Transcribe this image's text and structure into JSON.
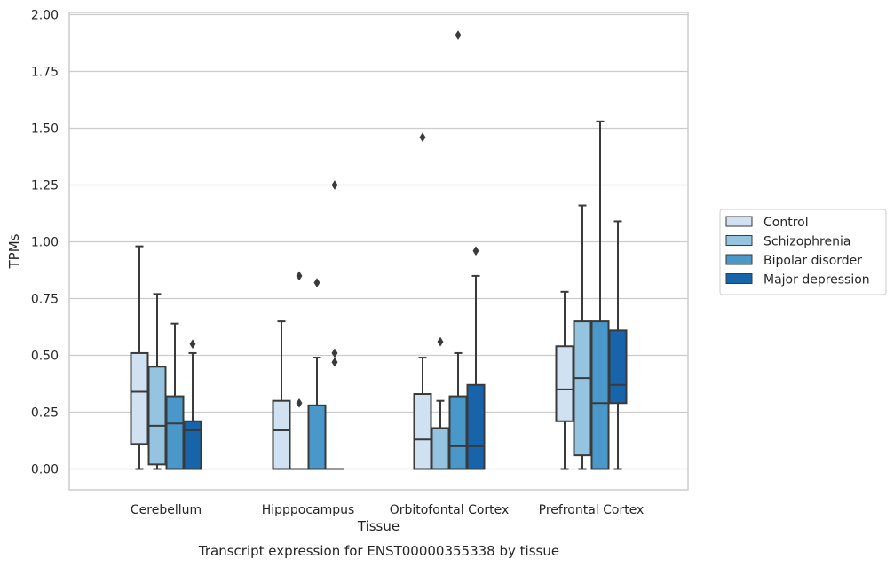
{
  "chart_data": {
    "type": "box",
    "title": "",
    "caption": "Transcript expression for ENST00000355338 by tissue",
    "xlabel": "Tissue",
    "ylabel": "TPMs",
    "ylim": [
      -0.09,
      2.0
    ],
    "yticks": [
      "0.00",
      "0.25",
      "0.50",
      "0.75",
      "1.00",
      "1.25",
      "1.50",
      "1.75",
      "2.00"
    ],
    "grid": "horizontal",
    "legend_position": "right",
    "categories": [
      "Cerebellum",
      "Hipppocampus",
      "Orbitofontal Cortex",
      "Prefrontal Cortex"
    ],
    "series": [
      {
        "name": "Control",
        "color": "#d0e1f2",
        "boxes": [
          {
            "min": 0.0,
            "q1": 0.11,
            "median": 0.34,
            "q3": 0.51,
            "max": 0.98,
            "outliers": []
          },
          {
            "min": 0.0,
            "q1": 0.0,
            "median": 0.17,
            "q3": 0.3,
            "max": 0.65,
            "outliers": []
          },
          {
            "min": 0.0,
            "q1": 0.0,
            "median": 0.13,
            "q3": 0.33,
            "max": 0.49,
            "outliers": [
              1.46
            ]
          },
          {
            "min": 0.0,
            "q1": 0.21,
            "median": 0.35,
            "q3": 0.54,
            "max": 0.78,
            "outliers": []
          }
        ]
      },
      {
        "name": "Schizophrenia",
        "color": "#94c4df",
        "boxes": [
          {
            "min": 0.0,
            "q1": 0.02,
            "median": 0.19,
            "q3": 0.45,
            "max": 0.77,
            "outliers": []
          },
          {
            "min": 0.0,
            "q1": 0.0,
            "median": 0.0,
            "q3": 0.0,
            "max": 0.0,
            "outliers": [
              0.29,
              0.85
            ]
          },
          {
            "min": 0.0,
            "q1": 0.0,
            "median": 0.0,
            "q3": 0.18,
            "max": 0.3,
            "outliers": [
              0.56
            ]
          },
          {
            "min": 0.0,
            "q1": 0.06,
            "median": 0.4,
            "q3": 0.65,
            "max": 1.16,
            "outliers": []
          }
        ]
      },
      {
        "name": "Bipolar disorder",
        "color": "#4a98c9",
        "boxes": [
          {
            "min": 0.0,
            "q1": 0.0,
            "median": 0.2,
            "q3": 0.32,
            "max": 0.64,
            "outliers": []
          },
          {
            "min": 0.0,
            "q1": 0.0,
            "median": 0.0,
            "q3": 0.28,
            "max": 0.49,
            "outliers": [
              0.82
            ]
          },
          {
            "min": 0.0,
            "q1": 0.0,
            "median": 0.1,
            "q3": 0.32,
            "max": 0.51,
            "outliers": [
              1.91
            ]
          },
          {
            "min": 0.0,
            "q1": 0.0,
            "median": 0.29,
            "q3": 0.65,
            "max": 1.53,
            "outliers": []
          }
        ]
      },
      {
        "name": "Major depression",
        "color": "#1764ab",
        "boxes": [
          {
            "min": 0.0,
            "q1": 0.0,
            "median": 0.17,
            "q3": 0.21,
            "max": 0.51,
            "outliers": [
              0.55
            ]
          },
          {
            "min": 0.0,
            "q1": 0.0,
            "median": 0.0,
            "q3": 0.0,
            "max": 0.0,
            "outliers": [
              0.47,
              0.51,
              1.25
            ]
          },
          {
            "min": 0.0,
            "q1": 0.0,
            "median": 0.1,
            "q3": 0.37,
            "max": 0.85,
            "outliers": [
              0.96
            ]
          },
          {
            "min": 0.0,
            "q1": 0.29,
            "median": 0.37,
            "q3": 0.61,
            "max": 1.09,
            "outliers": []
          }
        ]
      }
    ]
  }
}
